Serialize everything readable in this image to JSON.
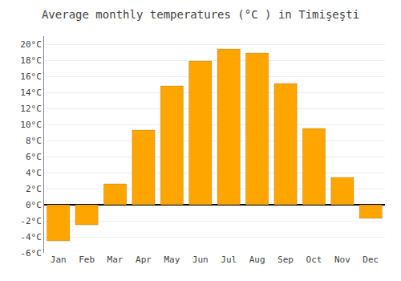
{
  "chart_data": {
    "type": "bar",
    "title": "Average monthly temperatures (°C ) in Timişeşti",
    "categories": [
      "Jan",
      "Feb",
      "Mar",
      "Apr",
      "May",
      "Jun",
      "Jul",
      "Aug",
      "Sep",
      "Oct",
      "Nov",
      "Dec"
    ],
    "values": [
      -4.5,
      -2.5,
      2.6,
      9.3,
      14.8,
      17.9,
      19.4,
      18.9,
      15.1,
      9.5,
      3.4,
      -1.7
    ],
    "color": "#FFA500",
    "ylim": [
      -6,
      21
    ],
    "yticks": [
      {
        "value": -6,
        "label": "-6°C"
      },
      {
        "value": -4,
        "label": "-4°C"
      },
      {
        "value": -2,
        "label": "-2°C"
      },
      {
        "value": 0,
        "label": "0°C"
      },
      {
        "value": 2,
        "label": "2°C"
      },
      {
        "value": 4,
        "label": "4°C"
      },
      {
        "value": 6,
        "label": "6°C"
      },
      {
        "value": 8,
        "label": "8°C"
      },
      {
        "value": 10,
        "label": "10°C"
      },
      {
        "value": 12,
        "label": "12°C"
      },
      {
        "value": 14,
        "label": "14°C"
      },
      {
        "value": 16,
        "label": "16°C"
      },
      {
        "value": 18,
        "label": "18°C"
      },
      {
        "value": 20,
        "label": "20°C"
      }
    ],
    "grid": true
  }
}
